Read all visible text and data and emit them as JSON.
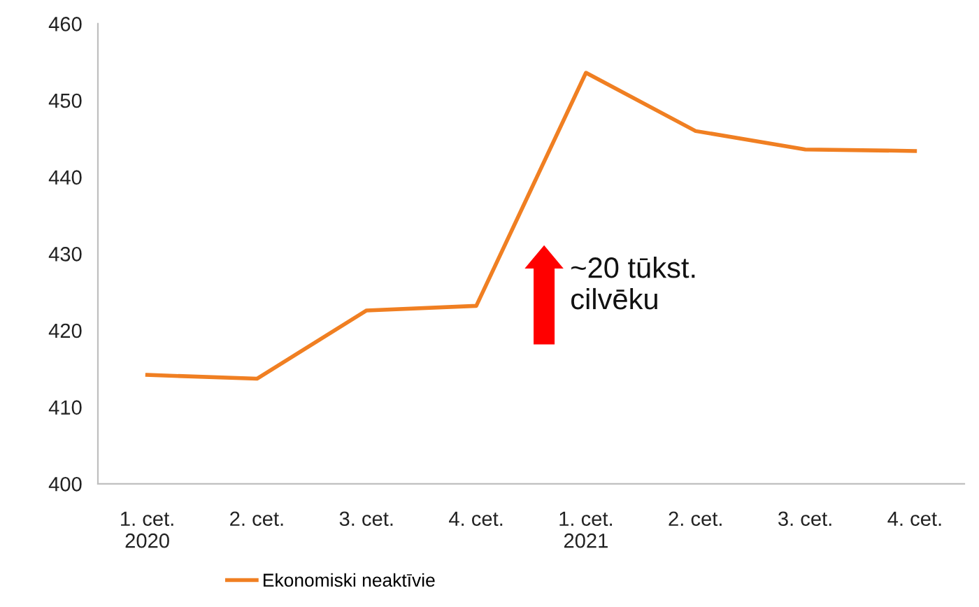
{
  "chart_data": {
    "type": "line",
    "categories": [
      "1. cet.\n2020",
      "2. cet.",
      "3. cet.",
      "4. cet.",
      "1. cet.\n2021",
      "2. cet.",
      "3. cet.",
      "4. cet."
    ],
    "series": [
      {
        "name": "Ekonomiski neaktīvie",
        "color": "#f07f22",
        "values": [
          414.2,
          413.7,
          422.6,
          423.2,
          453.6,
          446.0,
          443.6,
          443.4
        ]
      }
    ],
    "ylim": [
      400,
      460
    ],
    "yticks": [
      400,
      410,
      420,
      430,
      440,
      450,
      460
    ],
    "annotations": [
      "~20 tūkst.\ncilvēku"
    ],
    "legend": "bottom left",
    "grid": false,
    "marker": "none",
    "line_style": "solid"
  }
}
